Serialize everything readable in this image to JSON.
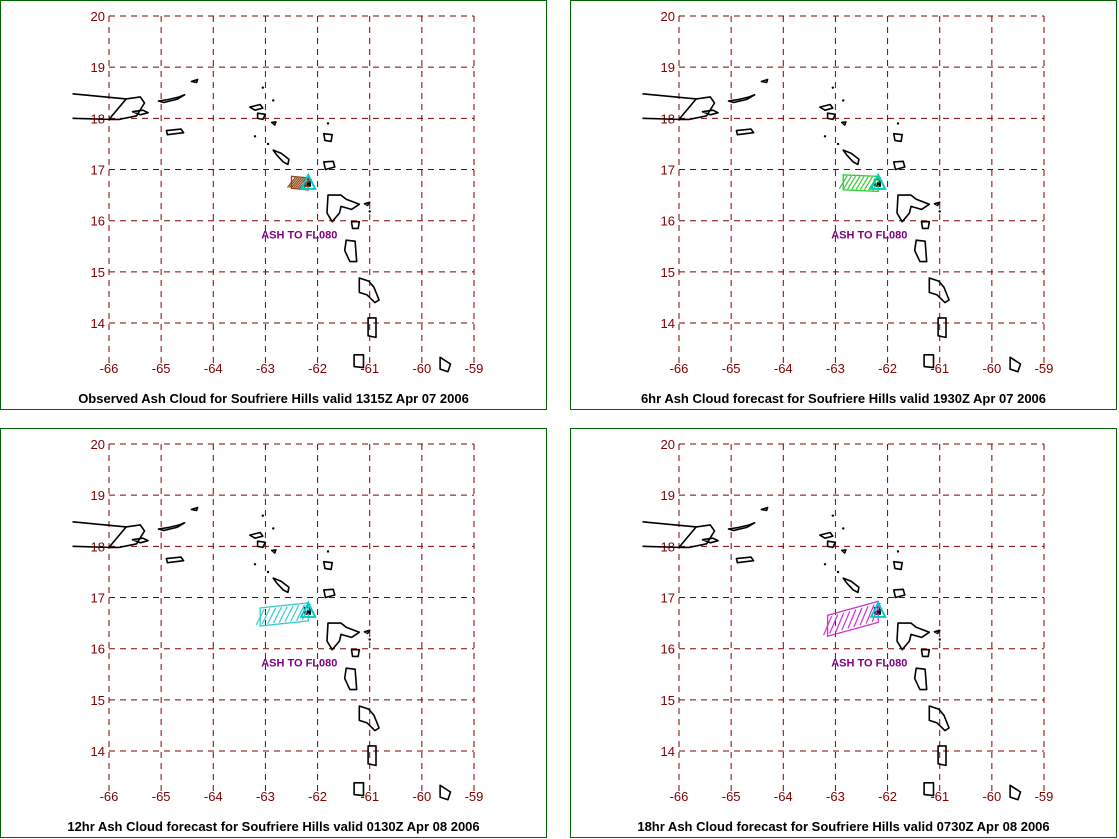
{
  "map_frame": {
    "lon_range": [
      -66,
      -59
    ],
    "lat_range": [
      13.2,
      20
    ],
    "lon_ticks": [
      "-66",
      "-65",
      "-64",
      "-63",
      "-62",
      "-61",
      "-60",
      "-59"
    ],
    "lat_ticks": [
      "20",
      "19",
      "18",
      "17",
      "16",
      "15",
      "14"
    ],
    "grid_color": "#800000",
    "land_outline_color": "#000000",
    "volcano": {
      "name": "Soufriere Hills",
      "lon": -62.18,
      "lat": 16.72
    }
  },
  "panels": [
    {
      "caption": "Observed Ash Cloud for Soufriere  Hills valid 1315Z Apr 07 2006",
      "ash_label": "ASH TO FL080",
      "ash_color": "#8b4513",
      "ash_extent": {
        "west_lon": -62.5,
        "east_lon": -62.18,
        "lat": 16.75
      }
    },
    {
      "caption": "6hr Ash Cloud forecast for Soufriere  Hills valid 1930Z Apr 07 2006",
      "ash_label": "ASH TO FL080",
      "ash_color": "#33cc33",
      "ash_extent": {
        "west_lon": -62.85,
        "east_lon": -62.18,
        "lat": 16.75
      }
    },
    {
      "caption": "12hr Ash Cloud forecast for Soufriere  Hills valid 0130Z Apr 08 2006",
      "ash_label": "ASH TO FL080",
      "ash_color": "#33cccc",
      "ash_extent": {
        "west_lon": -63.1,
        "east_lon": -62.18,
        "lat": 16.62
      }
    },
    {
      "caption": "18hr Ash Cloud forecast for Soufriere  Hills valid 0730Z Apr 08 2006",
      "ash_label": "ASH TO FL080",
      "ash_color": "#cc33cc",
      "ash_extent": {
        "west_lon": -63.15,
        "east_lon": -62.18,
        "lat": 16.45
      }
    }
  ]
}
